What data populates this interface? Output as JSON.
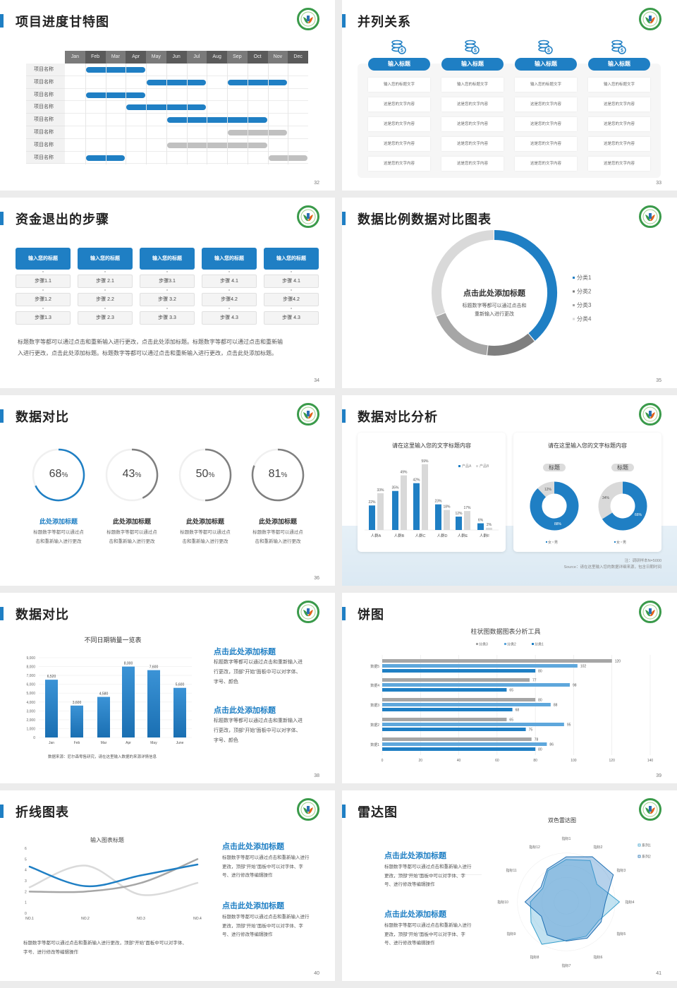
{
  "colors": {
    "primary": "#1f7fc4",
    "light_blue": "#5ea7dc",
    "gray_dark": "#7f7f7f",
    "gray_mid": "#a6a6a6",
    "gray_light": "#d9d9d9",
    "logo_green": "#3a9a4a"
  },
  "logo": {
    "icon": "school-emblem-logo"
  },
  "s32": {
    "title": "项目进度甘特图",
    "page": "32",
    "months": [
      "Jan",
      "Feb",
      "Mar",
      "Apr",
      "May",
      "Jun",
      "Jul",
      "Aug",
      "Sep",
      "Oct",
      "Nov",
      "Dec"
    ],
    "rows": [
      {
        "label": "项目名称",
        "bars": [
          {
            "start": "Feb",
            "end": "Apr",
            "status": "active"
          }
        ]
      },
      {
        "label": "项目名称",
        "bars": [
          {
            "start": "May",
            "end": "Jul",
            "status": "active"
          },
          {
            "start": "Sep",
            "end": "Nov",
            "status": "active"
          }
        ]
      },
      {
        "label": "项目名称",
        "bars": [
          {
            "start": "Feb",
            "end": "Apr",
            "status": "active"
          }
        ]
      },
      {
        "label": "项目名称",
        "bars": [
          {
            "start": "Apr",
            "end": "Jul",
            "status": "active"
          }
        ]
      },
      {
        "label": "项目名称",
        "bars": [
          {
            "start": "Jun",
            "end": "Oct",
            "status": "active"
          }
        ]
      },
      {
        "label": "项目名称",
        "bars": [
          {
            "start": "Sep",
            "end": "Nov",
            "status": "planned"
          }
        ]
      },
      {
        "label": "项目名称",
        "bars": [
          {
            "start": "Jun",
            "end": "Oct",
            "status": "planned"
          }
        ]
      },
      {
        "label": "项目名称",
        "bars": [
          {
            "start": "Feb",
            "end": "Mar",
            "status": "active"
          },
          {
            "start": "Nov",
            "end": "Dec",
            "status": "planned"
          }
        ]
      }
    ]
  },
  "s33": {
    "title": "并列关系",
    "page": "33",
    "icon": "coins-dollar-icon",
    "columns": [
      {
        "header": "输入标题",
        "cells": [
          "输入您的标题文字",
          "这是您的文字内容",
          "这是您的文字内容",
          "这是您的文字内容",
          "这是您的文字内容"
        ]
      },
      {
        "header": "输入标题",
        "cells": [
          "输入您的标题文字",
          "这是您的文字内容",
          "这是您的文字内容",
          "这是您的文字内容",
          "这是您的文字内容"
        ]
      },
      {
        "header": "输入标题",
        "cells": [
          "输入您的标题文字",
          "这是您的文字内容",
          "这是您的文字内容",
          "这是您的文字内容",
          "这是您的文字内容"
        ]
      },
      {
        "header": "输入标题",
        "cells": [
          "输入您的标题文字",
          "这是您的文字内容",
          "这是您的文字内容",
          "这是您的文字内容",
          "这是您的文字内容"
        ]
      }
    ]
  },
  "s34": {
    "title": "资金退出的步骤",
    "page": "34",
    "columns": [
      {
        "header": "输入您的标题",
        "steps": [
          "步骤1.1",
          "步骤1.2",
          "步骤1.3"
        ]
      },
      {
        "header": "输入您的标题",
        "steps": [
          "步骤 2.1",
          "步骤 2.2",
          "步骤 2.3"
        ]
      },
      {
        "header": "输入您的标题",
        "steps": [
          "步骤3.1",
          "步骤 3.2",
          "步骤 3.3"
        ]
      },
      {
        "header": "输入您的标题",
        "steps": [
          "步骤 4.1",
          "步骤4.2",
          "步骤 4.3"
        ]
      },
      {
        "header": "输入您的标题",
        "steps": [
          "步骤 4.1",
          "步骤4.2",
          "步骤 4.3"
        ]
      }
    ],
    "paragraph_lines": [
      "标题数字等都可以通过点击和重新输入进行更改，点击此处添加标题。标题数字等都可以通过点击和重新输",
      "入进行更改，点击此处添加标题。标题数字等都可以通过点击和重新输入进行更改，点击此处添加标题。"
    ]
  },
  "s35": {
    "title": "数据比例数据对比图表",
    "page": "35",
    "center_title": "点击此处添加标题",
    "center_lines": [
      "标题数字等都可以通过点击和",
      "重新输入进行更改"
    ],
    "chart_data": {
      "type": "pie",
      "donut": true,
      "categories": [
        "分类1",
        "分类2",
        "分类3",
        "分类4"
      ],
      "values": [
        39,
        13,
        17,
        31
      ],
      "legend": "right"
    }
  },
  "s36": {
    "title": "数据对比",
    "page": "36",
    "items": [
      {
        "value": 68,
        "unit": "%",
        "title": "此处添加标题",
        "lines": [
          "标题数字等都可以通过点",
          "击和重新输入进行更改"
        ],
        "highlight": true
      },
      {
        "value": 43,
        "unit": "%",
        "title": "此处添加标题",
        "lines": [
          "标题数字等都可以通过点",
          "击和重新输入进行更改"
        ],
        "highlight": false
      },
      {
        "value": 50,
        "unit": "%",
        "title": "此处添加标题",
        "lines": [
          "标题数字等都可以通过点",
          "击和重新输入进行更改"
        ],
        "highlight": false
      },
      {
        "value": 81,
        "unit": "%",
        "title": "此处添加标题",
        "lines": [
          "标题数字等都可以通过点",
          "击和重新输入进行更改"
        ],
        "highlight": false
      }
    ]
  },
  "s37": {
    "title": "数据对比分析",
    "page": "37",
    "note": "注：调研样本N=5000",
    "source": "Source：请在这里输入您的数据详细来源，包含日期时间",
    "chart_data": [
      {
        "type": "bar",
        "title": "请在这里输入您的文字标题内容",
        "categories": [
          "人群A",
          "人群B",
          "人群C",
          "人群D",
          "人群E",
          "人群F"
        ],
        "series": [
          {
            "name": "产品A",
            "values": [
              22,
              35,
              42,
              23,
              12,
              6
            ]
          },
          {
            "name": "产品B",
            "values": [
              33,
              49,
              59,
              18,
              17,
              2
            ]
          }
        ],
        "unit": "%",
        "legend": "top-right"
      },
      {
        "type": "pie",
        "donut": true,
        "title": "请在这里输入您的文字标题内容",
        "charts": [
          {
            "label": "标题",
            "categories": [
              "女",
              "男"
            ],
            "values": [
              88,
              12
            ]
          },
          {
            "label": "标题",
            "categories": [
              "女",
              "男"
            ],
            "values": [
              66,
              34
            ]
          }
        ],
        "unit": "%",
        "legend": "bottom"
      }
    ]
  },
  "s38": {
    "title": "数据对比",
    "page": "38",
    "source": "数据来源：尼尔森零售研究，请在这里输入数据的来源详情信息",
    "chart_data": {
      "type": "bar",
      "title": "不同日期销量一览表",
      "categories": [
        "Jan",
        "Feb",
        "Mar",
        "Apr",
        "May",
        "June"
      ],
      "values": [
        6520,
        3600,
        4580,
        8000,
        7600,
        5600
      ],
      "value_labels": [
        "6,520",
        "3,600",
        "4,580",
        "8,000",
        "7,600",
        "5,600"
      ],
      "ylim": [
        0,
        9000
      ],
      "yticks": [
        "0",
        "1,000",
        "2,000",
        "3,000",
        "4,000",
        "5,000",
        "6,000",
        "7,000",
        "8,000",
        "9,000"
      ],
      "grid": true
    },
    "texts": [
      {
        "title": "点击此处添加标题",
        "lines": [
          "标题数字等都可以通过点击和重新输入进",
          "行更改，顶部“开始”面板中可以对字体、",
          "字号、颜色"
        ]
      },
      {
        "title": "点击此处添加标题",
        "lines": [
          "标题数字等都可以通过点击和重新输入进",
          "行更改，顶部“开始”面板中可以对字体、",
          "字号、颜色"
        ]
      }
    ]
  },
  "s39": {
    "title": "饼图",
    "page": "39",
    "chart_data": {
      "type": "bar",
      "orientation": "horizontal",
      "title": "柱状图数据图表分析工具",
      "categories": [
        "数据5",
        "数据4",
        "数据3",
        "数据2",
        "数据1"
      ],
      "series": [
        {
          "name": "分类3",
          "values": [
            120,
            77,
            80,
            65,
            78
          ]
        },
        {
          "name": "分类2",
          "values": [
            102,
            98,
            88,
            95,
            86
          ]
        },
        {
          "name": "分类1",
          "values": [
            80,
            65,
            68,
            75,
            80
          ]
        }
      ],
      "xlim": [
        0,
        140
      ],
      "xticks": [
        "0",
        "20",
        "40",
        "60",
        "80",
        "100",
        "120",
        "140"
      ],
      "grid": true,
      "legend": "top"
    }
  },
  "s40": {
    "title": "折线图表",
    "page": "40",
    "chart_data": {
      "type": "line",
      "title": "输入图表标题",
      "categories": [
        "NO.1",
        "NO.2",
        "NO.3",
        "NO.4"
      ],
      "series": [
        {
          "values": [
            4.3,
            2.5,
            3.5,
            4.5
          ]
        },
        {
          "values": [
            2.0,
            2.0,
            2.8,
            5.0
          ]
        },
        {
          "values": [
            2.4,
            4.4,
            1.7,
            2.8
          ]
        }
      ],
      "ylim": [
        0,
        6
      ],
      "yticks": [
        "0",
        "1",
        "2",
        "3",
        "4",
        "5",
        "6"
      ],
      "smooth": true
    },
    "texts": [
      {
        "title": "点击此处添加标题",
        "lines": [
          "标题数字等都可以通过点击和重新输入进行",
          "更改，顶部“开始”面板中可以对字体、字",
          "号、进行修改等编辑操作"
        ]
      },
      {
        "title": "点击此处添加标题",
        "lines": [
          "标题数字等都可以通过点击和重新输入进行",
          "更改，顶部“开始”面板中可以对字体、字",
          "号、进行修改等编辑操作"
        ]
      }
    ],
    "bottom_lines": [
      "标题数字等都可以通过点击和重新输入进行更改，顶部“开始”面板中可以对字体、",
      "字号、进行修改等编辑操作"
    ]
  },
  "s41": {
    "title": "雷达图",
    "page": "41",
    "chart_data": {
      "type": "radar",
      "title": "双色雷达图",
      "categories": [
        "指标1",
        "指标2",
        "指标3",
        "指标4",
        "指标5",
        "指标6",
        "指标7",
        "指标8",
        "指标9",
        "指标10",
        "指标11",
        "指标12"
      ],
      "series": [
        {
          "name": "系列1",
          "values": [
            78,
            88,
            65,
            98,
            69,
            73,
            71,
            90,
            75,
            66,
            50,
            67
          ]
        },
        {
          "name": "系列2",
          "values": [
            83,
            96,
            100,
            72,
            74,
            77,
            72,
            70,
            53,
            76,
            54,
            70
          ]
        }
      ],
      "legend": "top-right"
    },
    "texts": [
      {
        "title": "点击此处添加标题",
        "lines": [
          "标题数字等都可以通过点击和重新输入进行",
          "更改，顶部“开始”面板中可以对字体、字",
          "号、进行修改等编辑操作"
        ]
      },
      {
        "title": "点击此处添加标题",
        "lines": [
          "标题数字等都可以通过点击和重新输入进行",
          "更改，顶部“开始”面板中可以对字体、字",
          "号、进行修改等编辑操作"
        ]
      }
    ]
  }
}
